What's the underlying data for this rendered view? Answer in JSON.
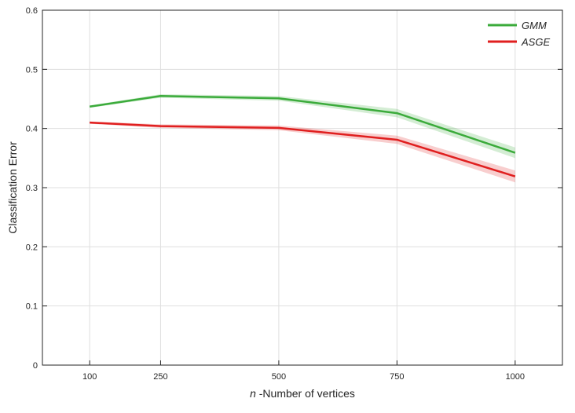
{
  "chart_data": {
    "type": "line",
    "xlabel_italic": "n",
    "xlabel_rest": " -Number of vertices",
    "ylabel": "Classification Error",
    "xticks": [
      100,
      250,
      500,
      750,
      1000
    ],
    "yticks": [
      "0",
      "0.1",
      "0.2",
      "0.3",
      "0.4",
      "0.5",
      "0.6"
    ],
    "xlim": [
      0,
      1100
    ],
    "ylim": [
      0,
      0.6
    ],
    "grid": true,
    "legend_position": "top-right",
    "x": [
      100,
      250,
      500,
      750,
      1000
    ],
    "series": [
      {
        "name": "GMM",
        "color": "#3bab3b",
        "values": [
          0.437,
          0.455,
          0.451,
          0.426,
          0.359
        ],
        "band": [
          0.002,
          0.003,
          0.004,
          0.007,
          0.009
        ]
      },
      {
        "name": "ASGE",
        "color": "#e01f1f",
        "values": [
          0.41,
          0.404,
          0.401,
          0.381,
          0.319
        ],
        "band": [
          0.002,
          0.003,
          0.004,
          0.007,
          0.01
        ]
      }
    ]
  }
}
